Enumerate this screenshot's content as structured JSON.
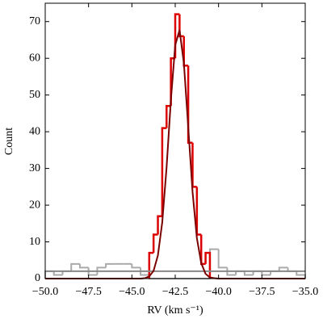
{
  "chart_data": {
    "type": "histogram",
    "xlabel": "RV (km s⁻¹)",
    "ylabel": "Count",
    "xlim": [
      -50,
      -35
    ],
    "ylim": [
      0,
      75
    ],
    "xticks": [
      {
        "value": -50,
        "label": "−50.0"
      },
      {
        "value": -47.5,
        "label": "−47.5"
      },
      {
        "value": -45,
        "label": "−45.0"
      },
      {
        "value": -42.5,
        "label": "−42.5"
      },
      {
        "value": -40,
        "label": "−40.0"
      },
      {
        "value": -37.5,
        "label": "−37.5"
      },
      {
        "value": -35,
        "label": "−35.0"
      }
    ],
    "yticks": [
      0,
      10,
      20,
      30,
      40,
      50,
      60,
      70
    ],
    "series": [
      {
        "color": "#aaaaaa",
        "bins": [
          -50,
          -49.5,
          -49,
          -48.5,
          -48,
          -47.5,
          -47,
          -46.5,
          -46,
          -45.5,
          -45,
          -44.5,
          -44,
          -43.5,
          -43,
          -42.5,
          -42,
          -41.5,
          -41,
          -40.5,
          -40,
          -39.5,
          -39,
          -38.5,
          -38,
          -37.5,
          -37,
          -36.5,
          -36,
          -35.5,
          -35
        ],
        "values": [
          2,
          1,
          2,
          4,
          3,
          1,
          3,
          4,
          4,
          4,
          3,
          1,
          0,
          0,
          0,
          0,
          0,
          0,
          0,
          8,
          3,
          1,
          2,
          1,
          2,
          1,
          2,
          3,
          2,
          1
        ]
      },
      {
        "color": "#dd0000",
        "bins": [
          -44,
          -43.75,
          -43.5,
          -43.25,
          -43,
          -42.75,
          -42.5,
          -42.25,
          -42,
          -41.75,
          -41.5,
          -41.25,
          -41,
          -40.75,
          -40.5
        ],
        "values": [
          7,
          12,
          17,
          41,
          47,
          60,
          72,
          66,
          58,
          37,
          25,
          12,
          4,
          7
        ]
      }
    ],
    "lines": [
      {
        "color": "#888888",
        "x": [
          -50,
          -35
        ],
        "values": [
          2,
          2
        ]
      },
      {
        "color": "#7a0000",
        "x": [
          -50,
          -44.5,
          -44.25,
          -44,
          -43.75,
          -43.5,
          -43.25,
          -43,
          -42.75,
          -42.5,
          -42.25,
          -42,
          -41.75,
          -41.5,
          -41.25,
          -41,
          -40.75,
          -40.5,
          -40.25,
          -40,
          -35
        ],
        "values": [
          0,
          0,
          0.1,
          0.6,
          2.1,
          6.3,
          15.3,
          30.2,
          48.7,
          63.6,
          67.7,
          58.6,
          41.3,
          23.6,
          11,
          4.2,
          1.3,
          0.3,
          0.1,
          0,
          0
        ]
      }
    ]
  }
}
